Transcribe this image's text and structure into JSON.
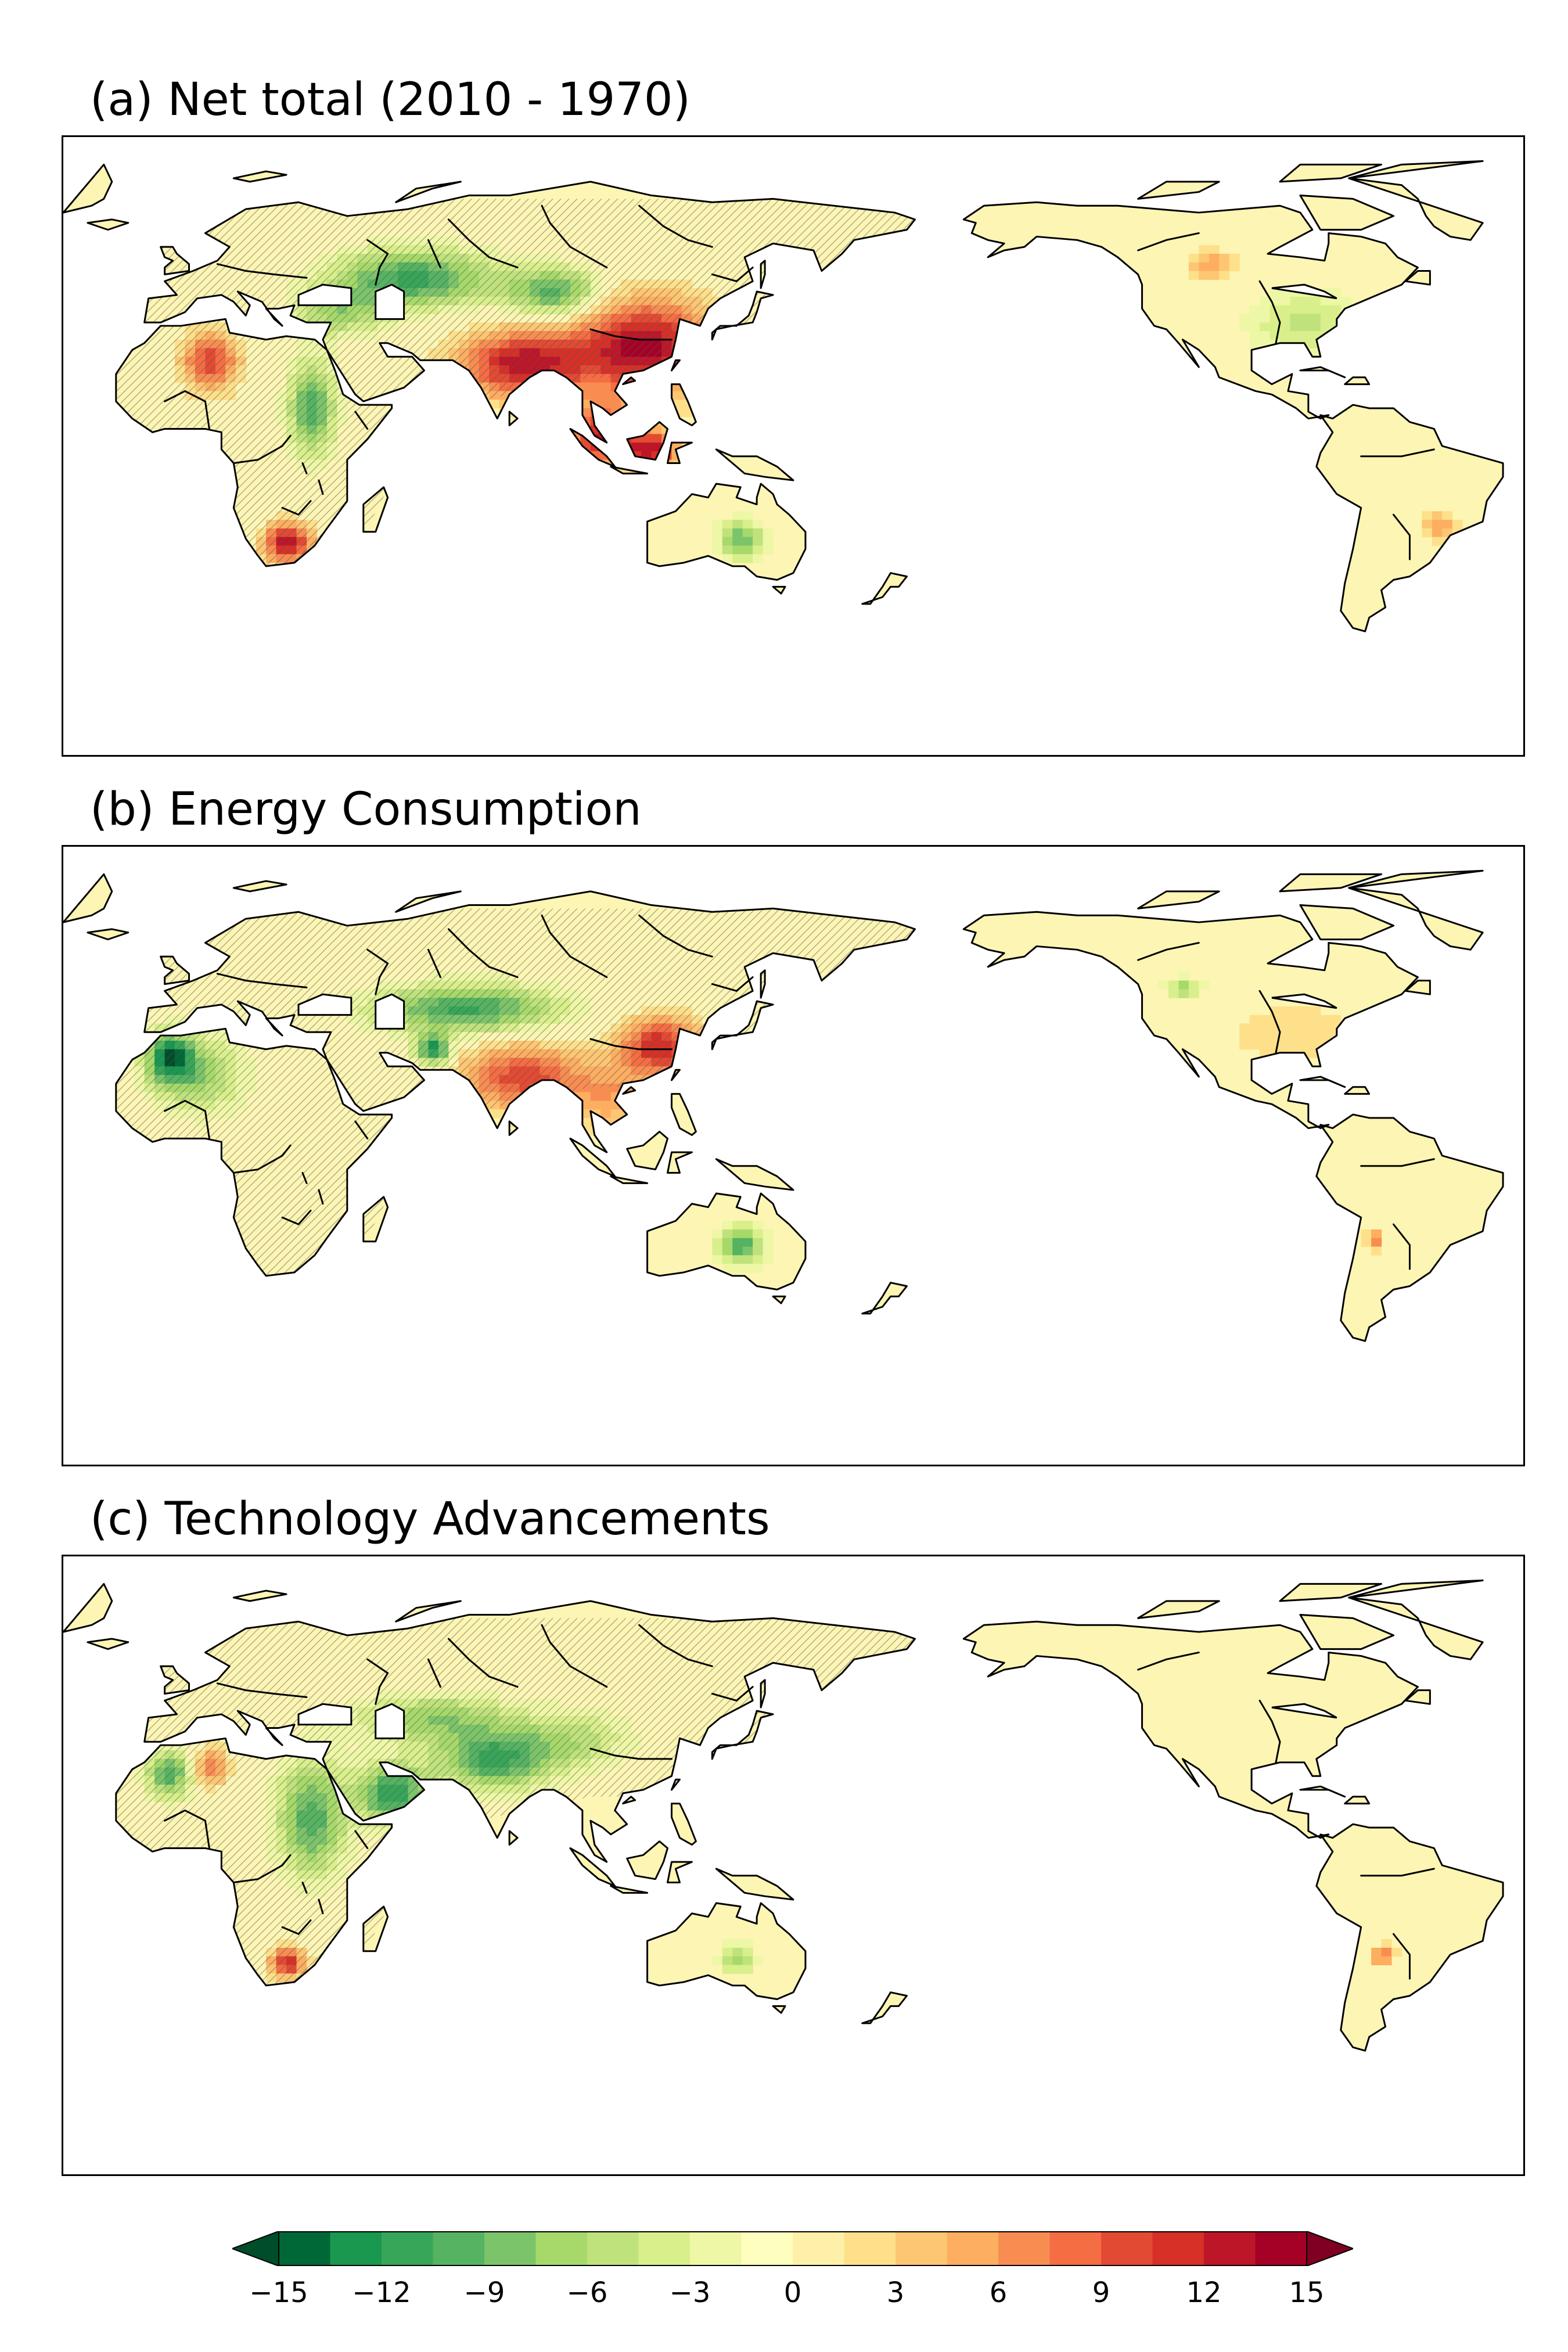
{
  "panels": [
    {
      "id": "a",
      "title": "(a) Net total (2010 - 1970)",
      "hotspots": [
        {
          "lon": 112,
          "lat": 30,
          "v": 14,
          "sx": 12,
          "sy": 10
        },
        {
          "lon": 82,
          "lat": 25,
          "v": 13,
          "sx": 11,
          "sy": 7
        },
        {
          "lon": 101,
          "lat": 4,
          "v": 12,
          "sx": 6,
          "sy": 6
        },
        {
          "lon": 114,
          "lat": 0,
          "v": 12,
          "sx": 5,
          "sy": 4
        },
        {
          "lon": 24,
          "lat": -27,
          "v": 14,
          "sx": 4,
          "sy": 4
        },
        {
          "lon": 5,
          "lat": 26,
          "v": 10,
          "sx": 5,
          "sy": 6
        },
        {
          "lon": 55,
          "lat": 50,
          "v": -11,
          "sx": 14,
          "sy": 6
        },
        {
          "lon": 90,
          "lat": 46,
          "v": -10,
          "sx": 8,
          "sy": 5
        },
        {
          "lon": 30,
          "lat": 12,
          "v": -10,
          "sx": 4,
          "sy": 10
        },
        {
          "lon": 37,
          "lat": 40,
          "v": -6,
          "sx": 8,
          "sy": 5
        },
        {
          "lon": 136,
          "lat": -26,
          "v": -9,
          "sx": 4,
          "sy": 4
        },
        {
          "lon": -85,
          "lat": 37,
          "v": -5,
          "sx": 10,
          "sy": 7
        },
        {
          "lon": -108,
          "lat": 54,
          "v": 6,
          "sx": 4,
          "sy": 3
        },
        {
          "lon": -52,
          "lat": -22,
          "v": 6,
          "sx": 3,
          "sy": 3
        }
      ]
    },
    {
      "id": "b",
      "title": "(b) Energy Consumption",
      "hotspots": [
        {
          "lon": 116,
          "lat": 33,
          "v": 12,
          "sx": 7,
          "sy": 6
        },
        {
          "lon": 82,
          "lat": 24,
          "v": 10,
          "sx": 11,
          "sy": 7
        },
        {
          "lon": 104,
          "lat": 18,
          "v": 5,
          "sx": 7,
          "sy": 7
        },
        {
          "lon": 68,
          "lat": 44,
          "v": -11,
          "sx": 16,
          "sy": 5
        },
        {
          "lon": 60,
          "lat": 32,
          "v": -13,
          "sx": 3,
          "sy": 3
        },
        {
          "lon": 2,
          "lat": 25,
          "v": -7,
          "sx": 8,
          "sy": 8
        },
        {
          "lon": 136,
          "lat": -25,
          "v": -10,
          "sx": 4,
          "sy": 4
        },
        {
          "lon": -115,
          "lat": 50,
          "v": -7,
          "sx": 3,
          "sy": 2
        },
        {
          "lon": -88,
          "lat": 37,
          "v": 3,
          "sx": 12,
          "sy": 6
        },
        {
          "lon": -5,
          "lat": 30,
          "v": -12,
          "sx": 4,
          "sy": 5
        },
        {
          "lon": -68,
          "lat": -23,
          "v": 8,
          "sx": 1.5,
          "sy": 2
        }
      ]
    },
    {
      "id": "c",
      "title": "(c) Technology Advancements",
      "hotspots": [
        {
          "lon": 75,
          "lat": 32,
          "v": -11,
          "sx": 10,
          "sy": 6
        },
        {
          "lon": 50,
          "lat": 22,
          "v": -12,
          "sx": 6,
          "sy": 6
        },
        {
          "lon": 30,
          "lat": 15,
          "v": -10,
          "sx": 6,
          "sy": 12
        },
        {
          "lon": 60,
          "lat": 44,
          "v": -7,
          "sx": 14,
          "sy": 5
        },
        {
          "lon": 95,
          "lat": 38,
          "v": -5,
          "sx": 10,
          "sy": 6
        },
        {
          "lon": 24,
          "lat": -27,
          "v": 12,
          "sx": 3,
          "sy": 3
        },
        {
          "lon": 5,
          "lat": 30,
          "v": 8,
          "sx": 3,
          "sy": 4
        },
        {
          "lon": 135,
          "lat": -26,
          "v": -7,
          "sx": 3,
          "sy": 3
        },
        {
          "lon": -66,
          "lat": -25,
          "v": 8,
          "sx": 2,
          "sy": 2
        },
        {
          "lon": -5,
          "lat": 28,
          "v": -10,
          "sx": 4,
          "sy": 5
        }
      ]
    }
  ],
  "colorbar": {
    "boundaries": [
      -15,
      -13.5,
      -12,
      -10.5,
      -9,
      -7.5,
      -6,
      -4.5,
      -3,
      -1.5,
      0,
      1.5,
      3,
      4.5,
      6,
      7.5,
      9,
      10.5,
      12,
      13.5,
      15
    ],
    "tick_labels": [
      "−15",
      "−12",
      "−9",
      "−6",
      "−3",
      "0",
      "3",
      "6",
      "9",
      "12",
      "15"
    ],
    "colors": [
      "#006837",
      "#1a9850",
      "#37a659",
      "#55b362",
      "#7cc46a",
      "#a6d96a",
      "#bfe27c",
      "#d9ef8b",
      "#eef7a6",
      "#fefebe",
      "#fef0a8",
      "#fee08b",
      "#fdc673",
      "#fdae61",
      "#f88d52",
      "#f46d43",
      "#e34a33",
      "#d73027",
      "#bd1628",
      "#a50026"
    ],
    "under_color": "#004d2a",
    "over_color": "#7f0020"
  },
  "colors": {
    "land_base": "#fdf5b3",
    "ocean": "#ffffff",
    "coast": "#000000"
  }
}
